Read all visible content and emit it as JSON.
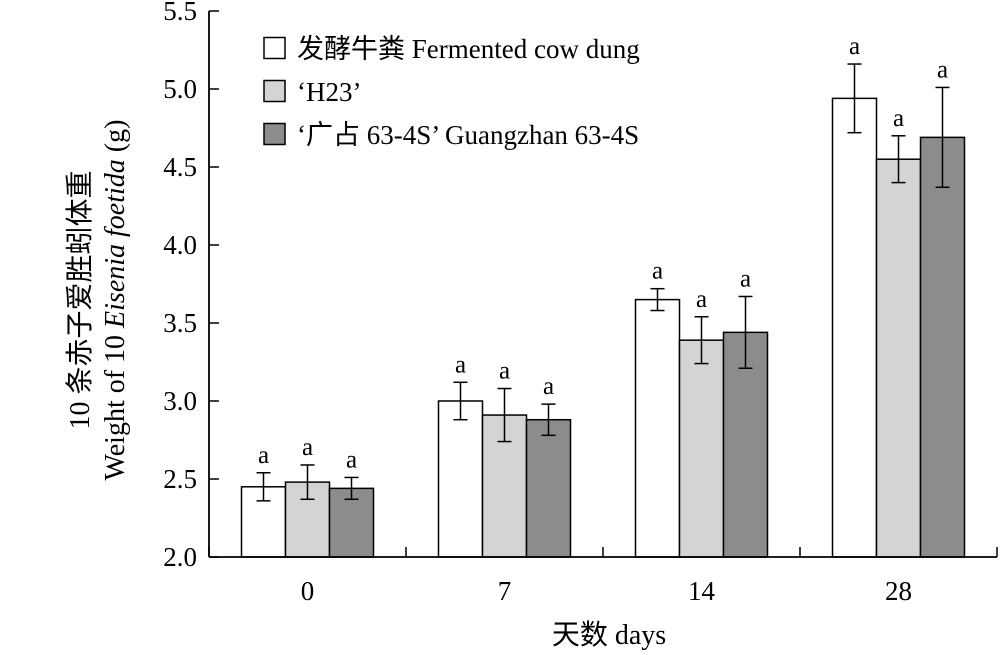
{
  "chart_data": {
    "type": "bar",
    "categories": [
      "0",
      "7",
      "14",
      "28"
    ],
    "xlabel": "天数 days",
    "ylabel_line1": "10 条赤子爱胜蚓体重",
    "ylabel_line2_prefix": "Weight of 10 ",
    "ylabel_line2_species": "Eisenia foetida",
    "ylabel_line2_suffix": " (g)",
    "ylim": [
      2.0,
      5.5
    ],
    "yticks": [
      "2.0",
      "2.5",
      "3.0",
      "3.5",
      "4.0",
      "4.5",
      "5.0",
      "5.5"
    ],
    "legend_position": "top-left",
    "series": [
      {
        "name": "发酵牛粪 Fermented cow dung",
        "color": "#ffffff",
        "values": [
          2.45,
          3.0,
          3.65,
          4.94
        ],
        "errors": [
          0.09,
          0.12,
          0.07,
          0.22
        ],
        "labels": [
          "a",
          "a",
          "a",
          "a"
        ]
      },
      {
        "name": "‘H23’",
        "color": "#d4d4d4",
        "values": [
          2.48,
          2.91,
          3.39,
          4.55
        ],
        "errors": [
          0.11,
          0.17,
          0.15,
          0.15
        ],
        "labels": [
          "a",
          "a",
          "a",
          "a"
        ]
      },
      {
        "name": "‘广占 63-4S’ Guangzhan 63-4S",
        "color": "#8c8c8c",
        "values": [
          2.44,
          2.88,
          3.44,
          4.69
        ],
        "errors": [
          0.07,
          0.1,
          0.23,
          0.32
        ],
        "labels": [
          "a",
          "a",
          "a",
          "a"
        ]
      }
    ]
  }
}
